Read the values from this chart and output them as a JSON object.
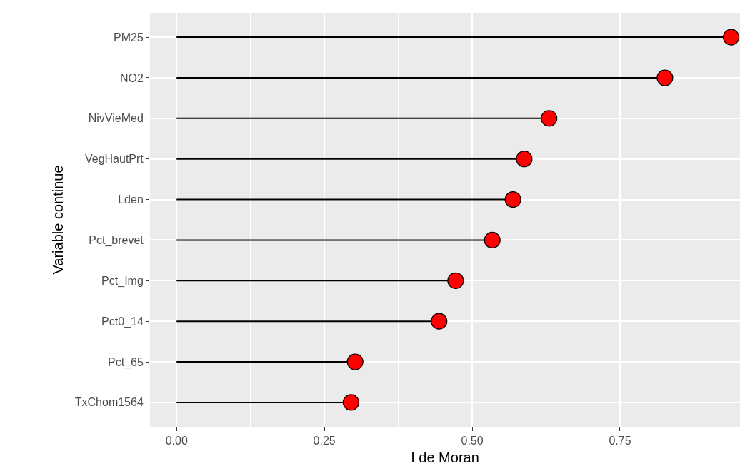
{
  "chart_data": {
    "type": "lollipop",
    "orientation": "horizontal",
    "xlabel": "I de Moran",
    "ylabel": "Variable continue",
    "categories": [
      "PM25",
      "NO2",
      "NivVieMed",
      "VegHautPrt",
      "Lden",
      "Pct_brevet",
      "Pct_Img",
      "Pct0_14",
      "Pct_65",
      "TxChom1564"
    ],
    "values": [
      0.938,
      0.826,
      0.63,
      0.588,
      0.569,
      0.534,
      0.472,
      0.444,
      0.302,
      0.295
    ],
    "color": "#ff0000",
    "xlim": [
      -0.045,
      0.953
    ],
    "xticks": [
      {
        "value": 0,
        "label": "0.00"
      },
      {
        "value": 0.25,
        "label": "0.25"
      },
      {
        "value": 0.5,
        "label": "0.50"
      },
      {
        "value": 0.75,
        "label": "0.75"
      }
    ],
    "grid": true,
    "marker": "circle"
  }
}
